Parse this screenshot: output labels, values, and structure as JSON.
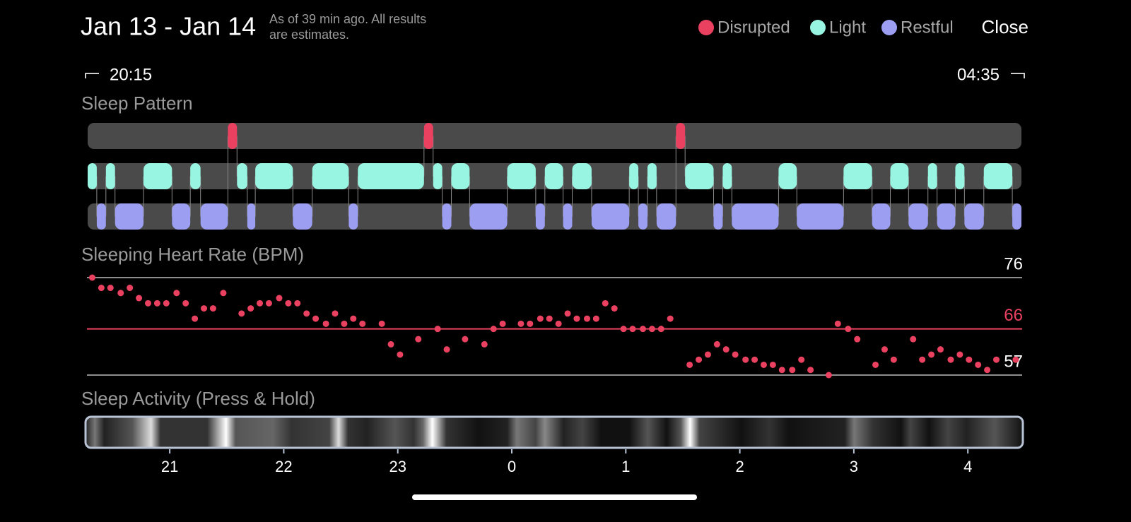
{
  "header": {
    "title": "Jan 13 - Jan 14",
    "note": [
      "As of 39 min ago. All results",
      "are estimates."
    ],
    "close": "Close"
  },
  "legend": [
    {
      "name": "Disrupted",
      "color": "#ea4161"
    },
    {
      "name": "Light",
      "color": "#98f5e1"
    },
    {
      "name": "Restful",
      "color": "#9c9ef2"
    }
  ],
  "range": {
    "start": "20:15",
    "end": "04:35"
  },
  "time_axis": {
    "xlim": [
      20.28,
      28.47
    ],
    "xticks": [
      21,
      22,
      23,
      {
        "value": 24,
        "label": "0"
      },
      {
        "value": 25,
        "label": "1"
      },
      {
        "value": 26,
        "label": "2"
      },
      {
        "value": 27,
        "label": "3"
      },
      {
        "value": 28,
        "label": "4"
      }
    ]
  },
  "sleep_pattern": {
    "title": "Sleep Pattern",
    "segments": [
      [
        [
          21.51,
          21.59
        ],
        [
          23.23,
          23.31
        ],
        [
          25.44,
          25.52
        ]
      ],
      [
        [
          20.28,
          20.36
        ],
        [
          20.44,
          20.52
        ],
        [
          20.77,
          21.02
        ],
        [
          21.18,
          21.27
        ],
        [
          21.59,
          21.68
        ],
        [
          21.75,
          22.08
        ],
        [
          22.25,
          22.57
        ],
        [
          22.65,
          23.23
        ],
        [
          23.31,
          23.39
        ],
        [
          23.47,
          23.63
        ],
        [
          23.96,
          24.21
        ],
        [
          24.29,
          24.45
        ],
        [
          24.53,
          24.7
        ],
        [
          25.03,
          25.11
        ],
        [
          25.19,
          25.27
        ],
        [
          25.52,
          25.77
        ],
        [
          25.85,
          25.93
        ],
        [
          26.34,
          26.5
        ],
        [
          26.91,
          27.16
        ],
        [
          27.32,
          27.48
        ],
        [
          27.65,
          27.73
        ],
        [
          27.89,
          27.97
        ],
        [
          28.14,
          28.39
        ]
      ],
      [
        [
          20.36,
          20.44
        ],
        [
          20.52,
          20.77
        ],
        [
          21.02,
          21.18
        ],
        [
          21.27,
          21.51
        ],
        [
          21.68,
          21.75
        ],
        [
          22.08,
          22.25
        ],
        [
          22.57,
          22.65
        ],
        [
          23.39,
          23.47
        ],
        [
          23.63,
          23.96
        ],
        [
          24.21,
          24.29
        ],
        [
          24.45,
          24.53
        ],
        [
          24.7,
          25.03
        ],
        [
          25.11,
          25.19
        ],
        [
          25.27,
          25.44
        ],
        [
          25.77,
          25.85
        ],
        [
          25.93,
          26.34
        ],
        [
          26.5,
          26.91
        ],
        [
          27.16,
          27.32
        ],
        [
          27.48,
          27.65
        ],
        [
          27.73,
          27.89
        ],
        [
          27.97,
          28.14
        ],
        [
          28.39,
          28.47
        ]
      ]
    ]
  },
  "heart_rate": {
    "title": "Sleeping Heart Rate (BPM)",
    "ylim": [
      57,
      76
    ],
    "color": "#ea4161",
    "reference_lines": [
      {
        "value": 76,
        "color": "#8e8e8e",
        "label_color": "#ffffff"
      },
      {
        "value": 66,
        "color": "#ea4161",
        "label_color": "#ea4161"
      },
      {
        "value": 57,
        "color": "#8e8e8e",
        "label_color": "#ffffff"
      }
    ],
    "x": [
      20.32,
      20.4,
      20.48,
      20.57,
      20.65,
      20.73,
      20.81,
      20.89,
      20.97,
      21.06,
      21.14,
      21.22,
      21.3,
      21.38,
      21.47,
      21.63,
      21.71,
      21.79,
      21.87,
      21.96,
      22.04,
      22.12,
      22.2,
      22.28,
      22.37,
      22.45,
      22.53,
      22.61,
      22.69,
      22.86,
      22.94,
      23.02,
      23.18,
      23.35,
      23.43,
      23.59,
      23.76,
      23.84,
      23.92,
      24.08,
      24.16,
      24.25,
      24.33,
      24.41,
      24.49,
      24.57,
      24.66,
      24.74,
      24.82,
      24.9,
      24.98,
      25.06,
      25.15,
      25.23,
      25.31,
      25.39,
      25.56,
      25.64,
      25.72,
      25.8,
      25.88,
      25.96,
      26.05,
      26.13,
      26.21,
      26.29,
      26.37,
      26.46,
      26.54,
      26.62,
      26.78,
      26.86,
      26.95,
      27.03,
      27.19,
      27.27,
      27.35,
      27.52,
      27.6,
      27.68,
      27.76,
      27.85,
      27.93,
      28.01,
      28.09,
      28.17,
      28.25,
      28.42
    ],
    "values": [
      76,
      74,
      74,
      73,
      74,
      72,
      71,
      71,
      71,
      73,
      71,
      68,
      70,
      70,
      73,
      69,
      70,
      71,
      71,
      72,
      71,
      71,
      69,
      68,
      67,
      69,
      67,
      68,
      67,
      67,
      63,
      61,
      64,
      66,
      62,
      64,
      63,
      66,
      67,
      67,
      67,
      68,
      68,
      67,
      69,
      68,
      68,
      68,
      71,
      70,
      66,
      66,
      66,
      66,
      66,
      68,
      59,
      60,
      61,
      63,
      62,
      61,
      60,
      60,
      59,
      59,
      58,
      58,
      60,
      58,
      57,
      67,
      66,
      64,
      59,
      62,
      60,
      64,
      60,
      61,
      62,
      60,
      61,
      60,
      59,
      58,
      60,
      60
    ]
  },
  "sleep_activity": {
    "title": "Sleep Activity (Press & Hold)"
  }
}
